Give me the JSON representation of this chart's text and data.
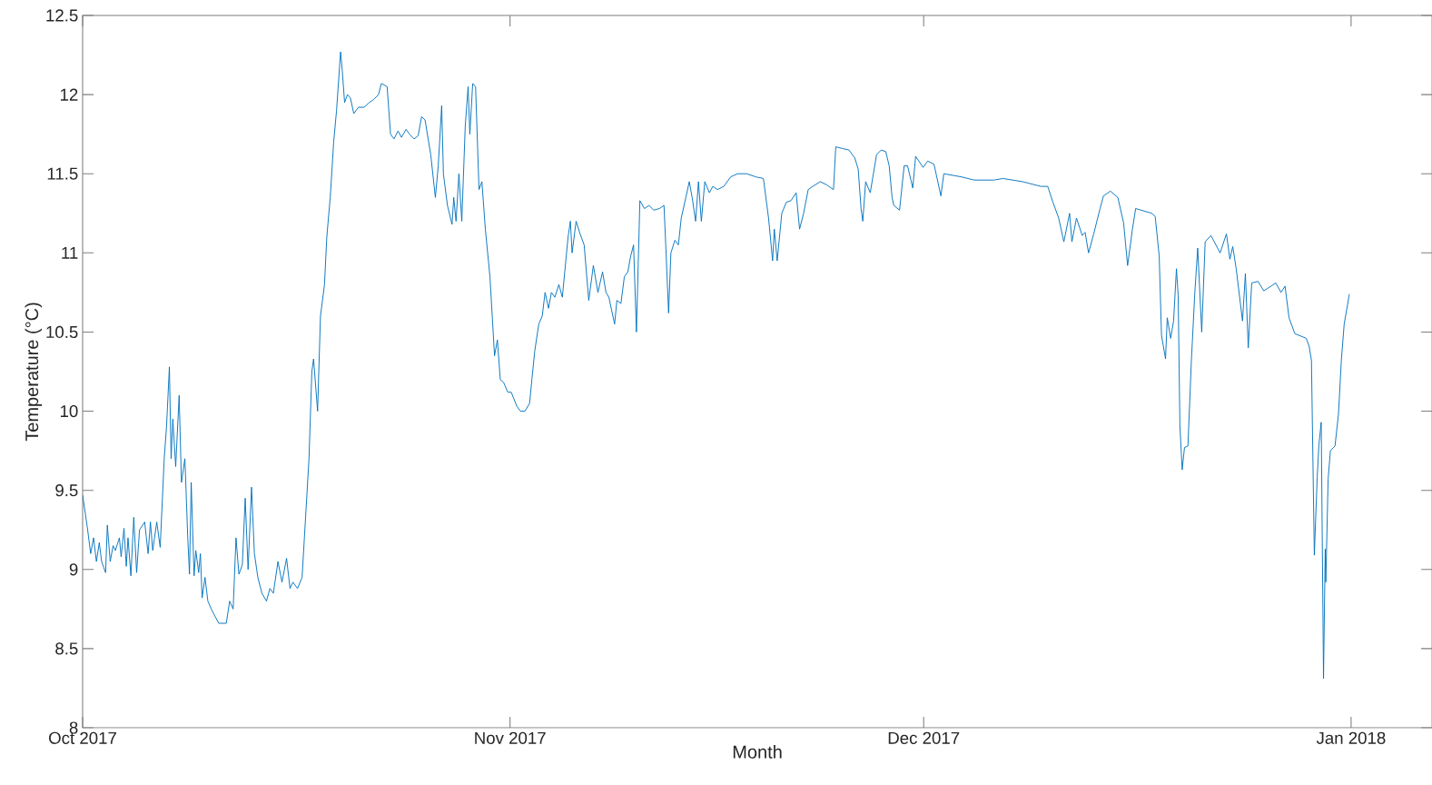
{
  "chart_data": {
    "type": "line",
    "xlabel": "Month",
    "ylabel": "Temperature (°C)",
    "xlim": [
      "2017-10-01",
      "2018-01-06T21:00"
    ],
    "xticks": [
      {
        "value": "2017-10-01",
        "label": "Oct 2017"
      },
      {
        "value": "2017-11-01",
        "label": "Nov 2017"
      },
      {
        "value": "2017-12-01",
        "label": "Dec 2017"
      },
      {
        "value": "2018-01-01",
        "label": "Jan 2018"
      }
    ],
    "ylim": [
      8,
      12.5
    ],
    "yticks": [
      8,
      8.5,
      9,
      9.5,
      10,
      10.5,
      11,
      11.5,
      12,
      12.5
    ],
    "grid": false,
    "series": [
      {
        "color": "#0072bd",
        "x": [
          "2017-10-01T00:00",
          "2017-10-01T08:00",
          "2017-10-01T14:00",
          "2017-10-01T19:00",
          "2017-10-02T00:00",
          "2017-10-02T05:00",
          "2017-10-02T09:00",
          "2017-10-02T16:00",
          "2017-10-02T19:00",
          "2017-10-03T00:00",
          "2017-10-03T05:00",
          "2017-10-03T09:00",
          "2017-10-03T16:00",
          "2017-10-03T19:00",
          "2017-10-04T00:00",
          "2017-10-04T04:00",
          "2017-10-04T07:00",
          "2017-10-04T12:00",
          "2017-10-04T17:00",
          "2017-10-04T22:00",
          "2017-10-05T03:00",
          "2017-10-05T12:00",
          "2017-10-05T18:00",
          "2017-10-05T22:00",
          "2017-10-06T02:00",
          "2017-10-06T09:00",
          "2017-10-06T15:00",
          "2017-10-06T22:00",
          "2017-10-07T02:00",
          "2017-10-07T07:00",
          "2017-10-07T10:00",
          "2017-10-07T13:00",
          "2017-10-07T18:00",
          "2017-10-08T00:00",
          "2017-10-08T04:00",
          "2017-10-08T10:00",
          "2017-10-08T15:00",
          "2017-10-08T18:00",
          "2017-10-08T21:00",
          "2017-10-09T02:00",
          "2017-10-09T05:00",
          "2017-10-09T10:00",
          "2017-10-09T13:00",
          "2017-10-09T16:00",
          "2017-10-09T21:00",
          "2017-10-10T02:00",
          "2017-10-10T08:00",
          "2017-10-10T15:00",
          "2017-10-10T21:00",
          "2017-10-11T10:00",
          "2017-10-11T16:00",
          "2017-10-11T22:00",
          "2017-10-12T03:00",
          "2017-10-12T08:00",
          "2017-10-12T14:00",
          "2017-10-12T19:00",
          "2017-10-13T00:00",
          "2017-10-13T06:00",
          "2017-10-13T11:00",
          "2017-10-13T17:00",
          "2017-10-14T00:00",
          "2017-10-14T08:00",
          "2017-10-14T14:00",
          "2017-10-14T20:00",
          "2017-10-15T04:00",
          "2017-10-15T11:00",
          "2017-10-15T19:00",
          "2017-10-16T01:00",
          "2017-10-16T06:00",
          "2017-10-16T14:00",
          "2017-10-16T22:00",
          "2017-10-17T02:00",
          "2017-10-17T10:00",
          "2017-10-17T15:00",
          "2017-10-17T18:00",
          "2017-10-18T01:00",
          "2017-10-18T06:00",
          "2017-10-18T13:00",
          "2017-10-18T17:00",
          "2017-10-18T23:00",
          "2017-10-19T05:00",
          "2017-10-19T10:00",
          "2017-10-19T17:00",
          "2017-10-19T20:00",
          "2017-10-20T00:00",
          "2017-10-20T05:00",
          "2017-10-20T10:00",
          "2017-10-20T16:00",
          "2017-10-21T00:00",
          "2017-10-21T10:00",
          "2017-10-21T19:00",
          "2017-10-22T03:00",
          "2017-10-22T11:00",
          "2017-10-22T16:00",
          "2017-10-23T02:00",
          "2017-10-23T08:00",
          "2017-10-23T14:00",
          "2017-10-23T21:00",
          "2017-10-24T03:00",
          "2017-10-24T11:00",
          "2017-10-24T17:00",
          "2017-10-25T01:00",
          "2017-10-25T08:00",
          "2017-10-25T14:00",
          "2017-10-25T20:00",
          "2017-10-26T06:00",
          "2017-10-26T14:00",
          "2017-10-26T19:00",
          "2017-10-27T01:00",
          "2017-10-27T04:00",
          "2017-10-27T11:00",
          "2017-10-27T19:00",
          "2017-10-27T22:00",
          "2017-10-28T02:00",
          "2017-10-28T07:00",
          "2017-10-28T12:00",
          "2017-10-28T18:00",
          "2017-10-28T23:00",
          "2017-10-29T02:00",
          "2017-10-29T07:00",
          "2017-10-29T12:00",
          "2017-10-29T18:00",
          "2017-10-29T23:00",
          "2017-10-30T05:00",
          "2017-10-30T13:00",
          "2017-10-30T17:00",
          "2017-10-30T21:00",
          "2017-10-31T02:00",
          "2017-10-31T07:00",
          "2017-10-31T13:00",
          "2017-10-31T20:00",
          "2017-11-01T02:00",
          "2017-11-01T12:00",
          "2017-11-01T18:00",
          "2017-11-02T02:00",
          "2017-11-02T10:00",
          "2017-11-02T14:00",
          "2017-11-02T19:00",
          "2017-11-03T02:00",
          "2017-11-03T08:00",
          "2017-11-03T13:00",
          "2017-11-03T19:00",
          "2017-11-04T00:00",
          "2017-11-04T06:00",
          "2017-11-04T13:00",
          "2017-11-04T19:00",
          "2017-11-05T05:00",
          "2017-11-05T09:00",
          "2017-11-05T12:00",
          "2017-11-05T19:00",
          "2017-11-06T01:00",
          "2017-11-06T09:00",
          "2017-11-06T17:00",
          "2017-11-07T01:00",
          "2017-11-07T09:00",
          "2017-11-07T17:00",
          "2017-11-07T23:00",
          "2017-11-08T04:00",
          "2017-11-08T14:00",
          "2017-11-08T18:00",
          "2017-11-09T01:00",
          "2017-11-09T07:00",
          "2017-11-09T13:00",
          "2017-11-09T18:00",
          "2017-11-09T23:00",
          "2017-11-10T04:00",
          "2017-11-10T10:00",
          "2017-11-10T18:00",
          "2017-11-11T02:00",
          "2017-11-11T10:00",
          "2017-11-11T20:00",
          "2017-11-12T04:00",
          "2017-11-12T07:00",
          "2017-11-12T12:00",
          "2017-11-12T16:00",
          "2017-11-12T23:00",
          "2017-11-13T05:00",
          "2017-11-13T10:00",
          "2017-11-13T18:00",
          "2017-11-14T00:00",
          "2017-11-14T05:00",
          "2017-11-14T11:00",
          "2017-11-14T16:00",
          "2017-11-14T21:00",
          "2017-11-15T03:00",
          "2017-11-15T11:00",
          "2017-11-15T17:00",
          "2017-11-16T01:00",
          "2017-11-16T12:00",
          "2017-11-17T00:00",
          "2017-11-17T12:00",
          "2017-11-18T04:00",
          "2017-11-18T20:00",
          "2017-11-19T09:00",
          "2017-11-19T18:00",
          "2017-11-20T01:00",
          "2017-11-20T04:00",
          "2017-11-20T09:00",
          "2017-11-20T17:00",
          "2017-11-21T01:00",
          "2017-11-21T09:00",
          "2017-11-21T18:00",
          "2017-11-22T00:00",
          "2017-11-22T07:00",
          "2017-11-22T15:00",
          "2017-11-22T23:00",
          "2017-11-23T12:00",
          "2017-11-23T23:00",
          "2017-11-24T11:00",
          "2017-11-24T15:00",
          "2017-11-25T02:00",
          "2017-11-25T14:00",
          "2017-11-26T00:00",
          "2017-11-26T06:00",
          "2017-11-26T11:00",
          "2017-11-26T14:00",
          "2017-11-26T19:00",
          "2017-11-27T03:00",
          "2017-11-27T14:00",
          "2017-11-27T22:00",
          "2017-11-28T06:00",
          "2017-11-28T12:00",
          "2017-11-28T17:00",
          "2017-11-28T20:00",
          "2017-11-29T06:00",
          "2017-11-29T14:00",
          "2017-11-29T20:00",
          "2017-11-30T05:00",
          "2017-11-30T10:00",
          "2017-11-30T23:00",
          "2017-12-01T07:00",
          "2017-12-01T18:00",
          "2017-12-02T06:00",
          "2017-12-02T11:00",
          "2017-12-03T18:00",
          "2017-12-04T16:00",
          "2017-12-06T02:00",
          "2017-12-06T18:00",
          "2017-12-08T04:00",
          "2017-12-09T12:00",
          "2017-12-10T00:00",
          "2017-12-10T09:00",
          "2017-12-10T19:00",
          "2017-12-11T04:00",
          "2017-12-11T14:00",
          "2017-12-11T18:00",
          "2017-12-12T02:00",
          "2017-12-12T12:00",
          "2017-12-12T17:00",
          "2017-12-12T23:00",
          "2017-12-13T08:00",
          "2017-12-13T19:00",
          "2017-12-14T01:00",
          "2017-12-14T13:00",
          "2017-12-15T02:00",
          "2017-12-15T12:00",
          "2017-12-15T19:00",
          "2017-12-16T03:00",
          "2017-12-16T09:00",
          "2017-12-17T13:00",
          "2017-12-17T19:00",
          "2017-12-18T02:00",
          "2017-12-18T06:00",
          "2017-12-18T13:00",
          "2017-12-18T16:00",
          "2017-12-18T22:00",
          "2017-12-19T03:00",
          "2017-12-19T08:00",
          "2017-12-19T11:00",
          "2017-12-19T14:00",
          "2017-12-19T18:00",
          "2017-12-19T22:00",
          "2017-12-20T04:00",
          "2017-12-20T10:00",
          "2017-12-20T16:00",
          "2017-12-20T21:00",
          "2017-12-21T04:00",
          "2017-12-21T10:00",
          "2017-12-21T20:00",
          "2017-12-22T12:00",
          "2017-12-22T23:00",
          "2017-12-23T05:00",
          "2017-12-23T10:00",
          "2017-12-23T16:00",
          "2017-12-24T03:00",
          "2017-12-24T08:00",
          "2017-12-24T13:00",
          "2017-12-24T19:00",
          "2017-12-25T06:00",
          "2017-12-25T16:00",
          "2017-12-26T13:00",
          "2017-12-26T22:00",
          "2017-12-27T05:00",
          "2017-12-27T12:00",
          "2017-12-27T22:00",
          "2017-12-28T18:00",
          "2017-12-28T23:00",
          "2017-12-29T03:00",
          "2017-12-29T08:00",
          "2017-12-29T13:00",
          "2017-12-29T16:00",
          "2017-12-29T20:00",
          "2017-12-30T00:00",
          "2017-12-30T03:00",
          "2017-12-30T04:00",
          "2017-12-30T08:00",
          "2017-12-30T12:00",
          "2017-12-30T20:00",
          "2017-12-31T02:00",
          "2017-12-31T07:00",
          "2017-12-31T12:00",
          "2017-12-31T21:00"
        ],
        "values": [
          9.47,
          9.27,
          9.1,
          9.2,
          9.05,
          9.17,
          9.05,
          8.98,
          9.28,
          9.05,
          9.15,
          9.12,
          9.2,
          9.08,
          9.26,
          9.02,
          9.2,
          8.96,
          9.33,
          8.98,
          9.25,
          9.3,
          9.1,
          9.3,
          9.12,
          9.3,
          9.14,
          9.7,
          9.9,
          10.28,
          9.7,
          9.95,
          9.65,
          10.1,
          9.55,
          9.7,
          9.2,
          8.97,
          9.55,
          8.96,
          9.12,
          8.98,
          9.1,
          8.82,
          8.95,
          8.8,
          8.75,
          8.7,
          8.66,
          8.66,
          8.8,
          8.75,
          9.2,
          8.97,
          9.03,
          9.45,
          9.0,
          9.52,
          9.1,
          8.95,
          8.85,
          8.8,
          8.88,
          8.85,
          9.05,
          8.92,
          9.07,
          8.88,
          8.92,
          8.88,
          8.95,
          9.2,
          9.7,
          10.25,
          10.33,
          10.0,
          10.6,
          10.8,
          11.1,
          11.35,
          11.7,
          11.9,
          12.27,
          12.15,
          11.95,
          12.0,
          11.98,
          11.88,
          11.92,
          11.92,
          11.95,
          11.97,
          12.0,
          12.07,
          12.05,
          11.75,
          11.72,
          11.77,
          11.73,
          11.78,
          11.75,
          11.72,
          11.74,
          11.86,
          11.84,
          11.62,
          11.35,
          11.55,
          11.93,
          11.5,
          11.3,
          11.18,
          11.35,
          11.2,
          11.5,
          11.2,
          11.8,
          12.05,
          11.75,
          12.07,
          12.05,
          11.4,
          11.45,
          11.15,
          10.85,
          10.6,
          10.35,
          10.45,
          10.2,
          10.18,
          10.12,
          10.12,
          10.03,
          10.0,
          10.0,
          10.05,
          10.2,
          10.38,
          10.55,
          10.6,
          10.75,
          10.65,
          10.75,
          10.72,
          10.8,
          10.72,
          11.1,
          11.2,
          11.0,
          11.2,
          11.13,
          11.05,
          10.7,
          10.92,
          10.75,
          10.88,
          10.75,
          10.72,
          10.55,
          10.7,
          10.68,
          10.85,
          10.88,
          10.98,
          11.05,
          10.5,
          11.33,
          11.28,
          11.3,
          11.27,
          11.28,
          11.3,
          11.05,
          10.62,
          11.0,
          11.08,
          11.05,
          11.22,
          11.35,
          11.45,
          11.35,
          11.2,
          11.45,
          11.2,
          11.45,
          11.38,
          11.42,
          11.4,
          11.42,
          11.48,
          11.5,
          11.5,
          11.48,
          11.47,
          11.22,
          10.95,
          11.15,
          10.95,
          11.25,
          11.32,
          11.33,
          11.38,
          11.15,
          11.25,
          11.4,
          11.42,
          11.45,
          11.43,
          11.4,
          11.67,
          11.66,
          11.65,
          11.6,
          11.53,
          11.28,
          11.2,
          11.45,
          11.38,
          11.62,
          11.65,
          11.64,
          11.55,
          11.35,
          11.3,
          11.27,
          11.55,
          11.55,
          11.41,
          11.61,
          11.54,
          11.58,
          11.56,
          11.36,
          11.5,
          11.48,
          11.46,
          11.46,
          11.47,
          11.45,
          11.42,
          11.42,
          11.32,
          11.22,
          11.07,
          11.25,
          11.07,
          11.22,
          11.11,
          11.13,
          11.0,
          11.12,
          11.28,
          11.36,
          11.39,
          11.35,
          11.19,
          10.92,
          11.14,
          11.28,
          11.25,
          11.23,
          10.98,
          10.48,
          10.33,
          10.59,
          10.46,
          10.57,
          10.9,
          10.73,
          9.91,
          9.63,
          9.77,
          9.78,
          10.32,
          10.75,
          11.03,
          10.5,
          11.07,
          11.11,
          11.0,
          11.12,
          10.96,
          11.04,
          10.9,
          10.57,
          10.87,
          10.4,
          10.81,
          10.82,
          10.76,
          10.81,
          10.75,
          10.79,
          10.59,
          10.49,
          10.46,
          10.41,
          10.32,
          9.09,
          9.58,
          9.79,
          9.93,
          8.31,
          9.13,
          8.92,
          9.57,
          9.75,
          9.78,
          9.98,
          10.32,
          10.55,
          10.74
        ]
      }
    ]
  }
}
